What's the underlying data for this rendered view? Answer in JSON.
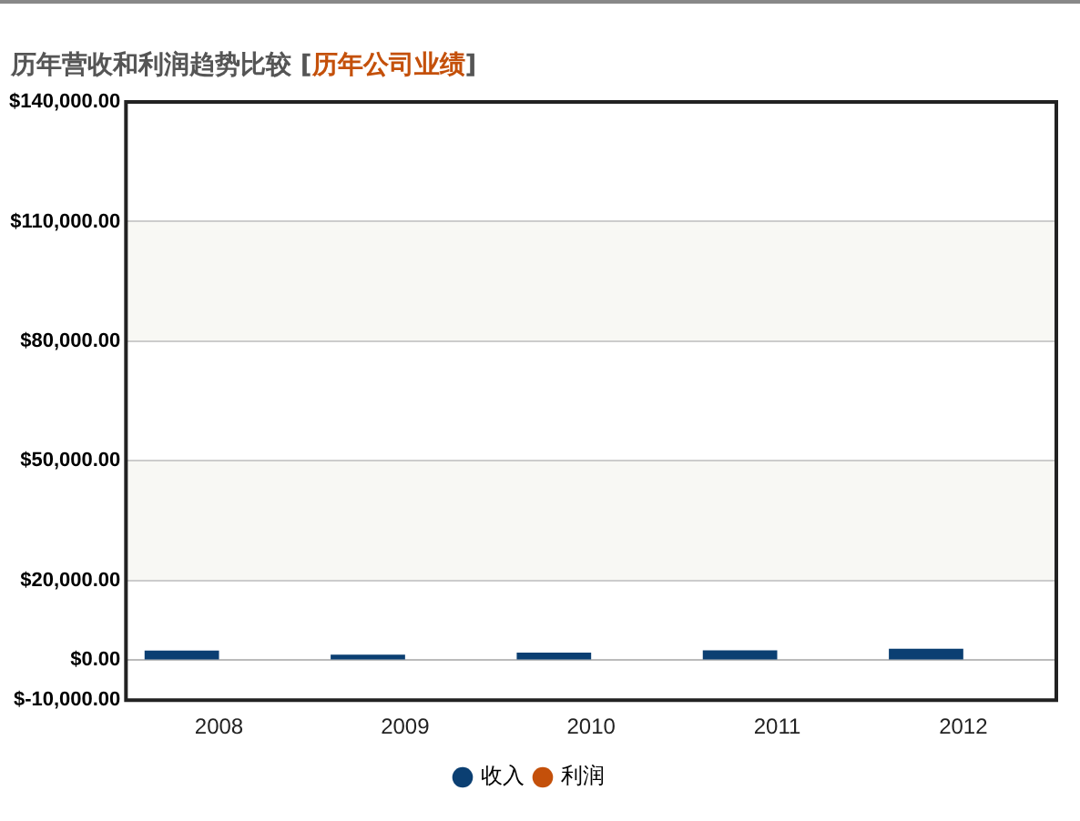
{
  "chart_data": {
    "type": "bar",
    "title": "历年营收和利润趋势比较 [历年公司业绩]",
    "categories": [
      "2008",
      "2009",
      "2010",
      "2011",
      "2012"
    ],
    "series": [
      {
        "name": "收入",
        "color": "#0b3f72",
        "values": [
          2400,
          1400,
          1900,
          2500,
          2900
        ]
      },
      {
        "name": "利润",
        "color": "#c4500a",
        "values": [
          null,
          null,
          null,
          null,
          null
        ]
      }
    ],
    "ylim": [
      -10000,
      140000
    ],
    "yticks": [
      {
        "value": -10000,
        "label": "$-10,000.00"
      },
      {
        "value": 0,
        "label": "$0.00"
      },
      {
        "value": 20000,
        "label": "$20,000.00"
      },
      {
        "value": 50000,
        "label": "$50,000.00"
      },
      {
        "value": 80000,
        "label": "$80,000.00"
      },
      {
        "value": 110000,
        "label": "$110,000.00"
      },
      {
        "value": 140000,
        "label": "$140,000.00"
      }
    ],
    "bands": [
      {
        "axis": "y",
        "from": 20000,
        "to": 50000,
        "color": "#f8f8f4"
      },
      {
        "axis": "y",
        "from": 80000,
        "to": 110000,
        "color": "#f8f8f4"
      }
    ],
    "grid": "y",
    "legend": "bottom"
  }
}
